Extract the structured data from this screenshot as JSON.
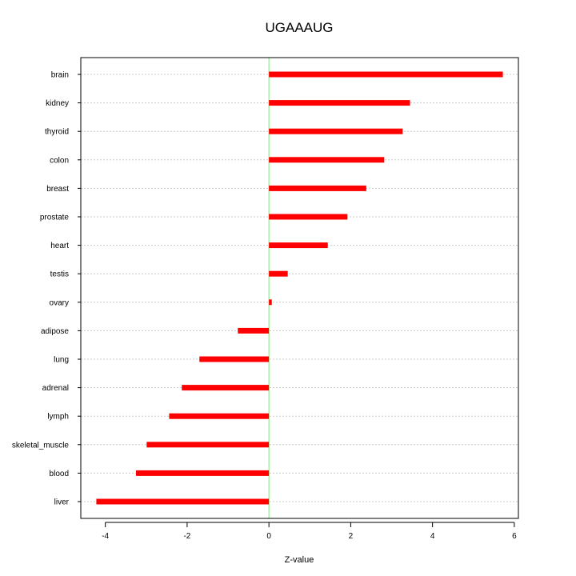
{
  "chart_data": {
    "type": "bar",
    "orientation": "horizontal",
    "title": "UGAAAUG",
    "xlabel": "Z-value",
    "ylabel": "",
    "xlim": [
      -4.6,
      6.1
    ],
    "x_ticks": [
      -4,
      -2,
      0,
      2,
      4,
      6
    ],
    "x_tick_labels": [
      "-4",
      "-2",
      "0",
      "2",
      "4",
      "6"
    ],
    "grid": "horizontal dotted",
    "categories": [
      "brain",
      "kidney",
      "thyroid",
      "colon",
      "breast",
      "prostate",
      "heart",
      "testis",
      "ovary",
      "adipose",
      "lung",
      "adrenal",
      "lymph",
      "skeletal_muscle",
      "blood",
      "liver"
    ],
    "values": [
      5.72,
      3.45,
      3.27,
      2.82,
      2.38,
      1.92,
      1.44,
      0.46,
      0.07,
      -0.76,
      -1.7,
      -2.13,
      -2.44,
      -2.99,
      -3.25,
      -4.22
    ],
    "colors": {
      "bar": "#ff0000",
      "zero_line": "#90ee90",
      "grid": "#c8c8c8",
      "frame": "#000000"
    }
  }
}
